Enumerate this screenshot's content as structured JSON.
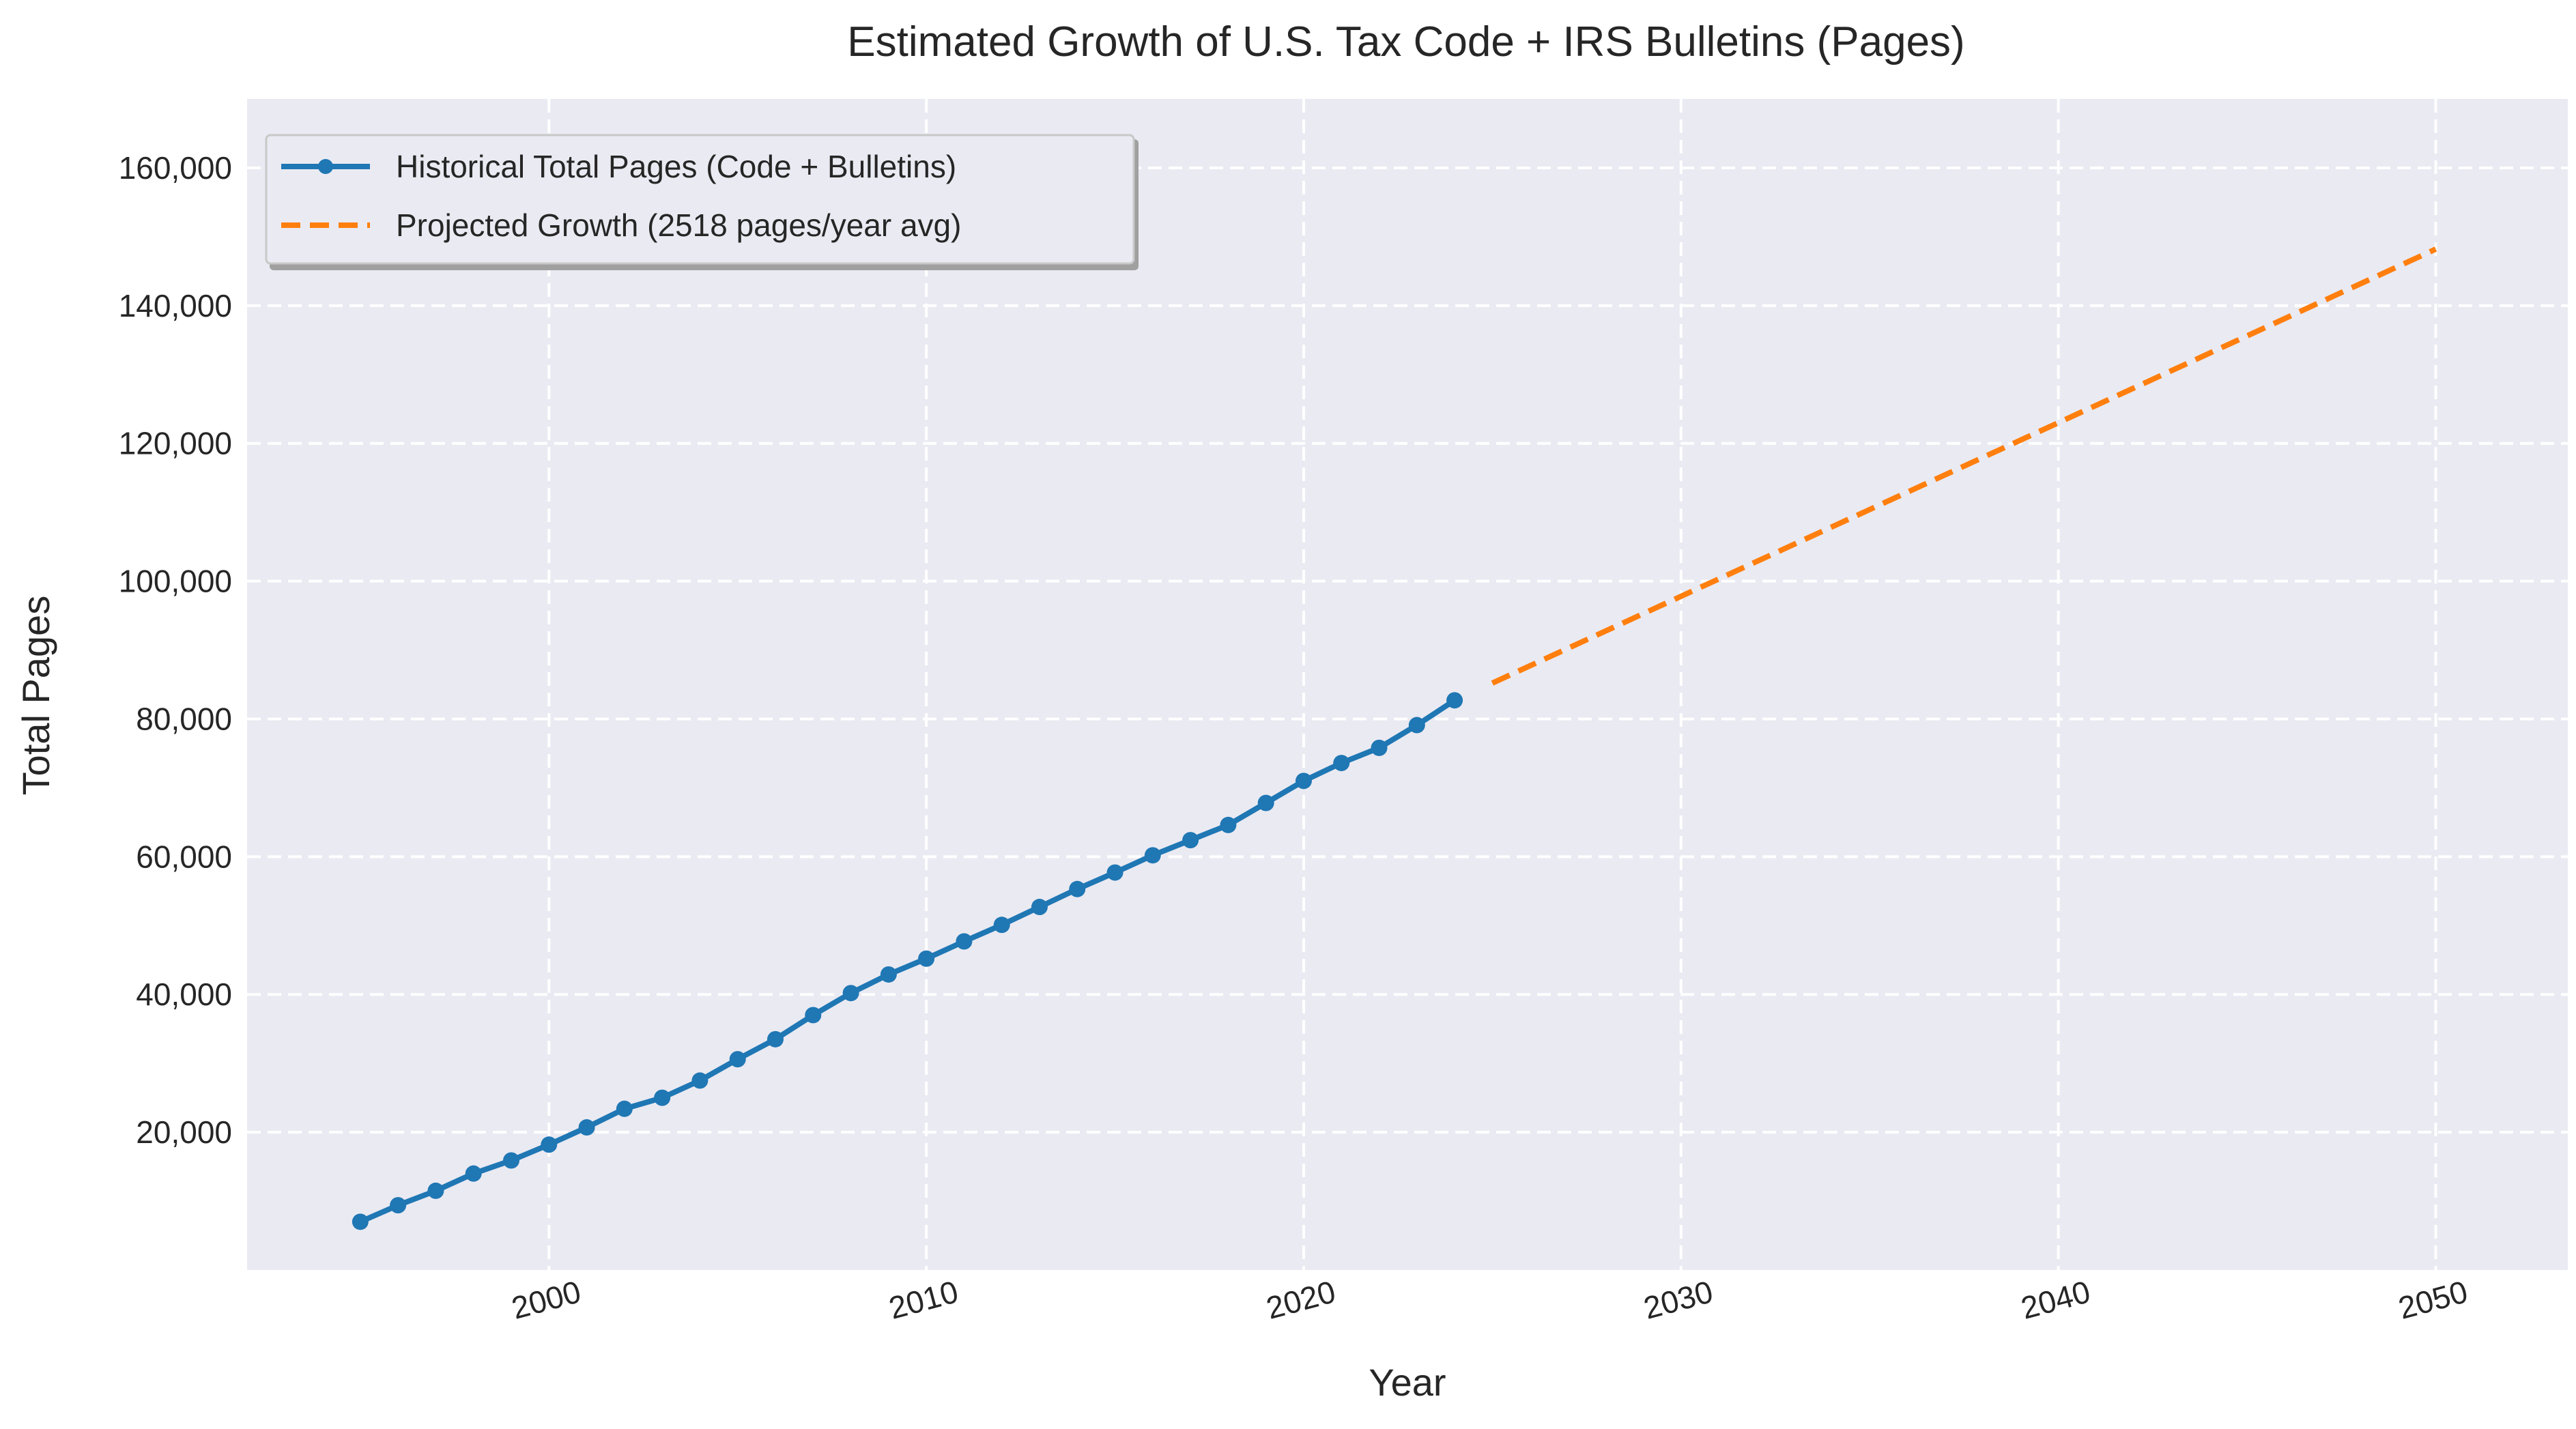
{
  "chart_data": {
    "type": "line",
    "title": "Estimated Growth of U.S. Tax Code + IRS Bulletins (Pages)",
    "xlabel": "Year",
    "ylabel": "Total Pages",
    "xlim": [
      1992,
      2053.5
    ],
    "ylim": [
      0,
      170000
    ],
    "x_ticks": [
      2000,
      2010,
      2020,
      2030,
      2040,
      2050
    ],
    "y_ticks": [
      20000,
      40000,
      60000,
      80000,
      100000,
      120000,
      140000,
      160000
    ],
    "y_tick_labels": [
      "20,000",
      "40,000",
      "60,000",
      "80,000",
      "100,000",
      "120,000",
      "140,000",
      "160,000"
    ],
    "grid": true,
    "legend_position": "top-left",
    "series": [
      {
        "name": "Historical Total Pages (Code + Bulletins)",
        "color": "#1f77b4",
        "style": "solid-with-markers",
        "x": [
          1995,
          1996,
          1997,
          1998,
          1999,
          2000,
          2001,
          2002,
          2003,
          2004,
          2005,
          2006,
          2007,
          2008,
          2009,
          2010,
          2011,
          2012,
          2013,
          2014,
          2015,
          2016,
          2017,
          2018,
          2019,
          2020,
          2021,
          2022,
          2023,
          2024
        ],
        "y": [
          7000,
          9400,
          11500,
          14000,
          15900,
          18200,
          20700,
          23400,
          25000,
          27500,
          30600,
          33500,
          37000,
          40200,
          42900,
          45200,
          47700,
          50100,
          52700,
          55300,
          57700,
          60200,
          62400,
          64600,
          67800,
          71000,
          73600,
          75800,
          79100,
          82700
        ]
      },
      {
        "name": "Projected Growth (2518 pages/year avg)",
        "color": "#ff7f0e",
        "style": "dashed",
        "x": [
          2025,
          2050
        ],
        "y": [
          85200,
          148200
        ]
      }
    ]
  }
}
